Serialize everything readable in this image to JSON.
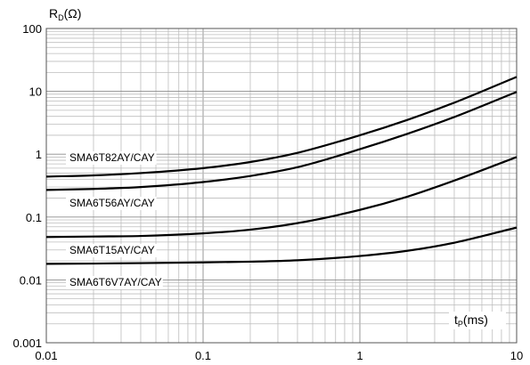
{
  "chart_data": {
    "type": "line",
    "xscale": "log",
    "yscale": "log",
    "xlim": [
      0.01,
      10
    ],
    "ylim": [
      0.001,
      100
    ],
    "grid": true,
    "ylabel": {
      "main": "R",
      "sub": "D",
      "unit": "(Ω)"
    },
    "xlabel": {
      "main": "t",
      "sub": "P",
      "unit": "(ms)"
    },
    "x_ticks": [
      "0.01",
      "0.1",
      "1",
      "10"
    ],
    "y_ticks": [
      "0.001",
      "0.01",
      "0.1",
      "1",
      "10",
      "100"
    ],
    "series": [
      {
        "name": "SMA6T82AY/CAY",
        "x": [
          0.01,
          0.02,
          0.04,
          0.1,
          0.2,
          0.4,
          1,
          2,
          4,
          10
        ],
        "y": [
          0.44,
          0.46,
          0.5,
          0.6,
          0.75,
          1.05,
          2.0,
          3.5,
          6.6,
          17
        ]
      },
      {
        "name": "SMA6T56AY/CAY",
        "x": [
          0.01,
          0.02,
          0.04,
          0.1,
          0.2,
          0.4,
          1,
          2,
          4,
          10
        ],
        "y": [
          0.27,
          0.28,
          0.3,
          0.36,
          0.45,
          0.62,
          1.2,
          2.1,
          3.9,
          9.8
        ]
      },
      {
        "name": "SMA6T15AY/CAY",
        "x": [
          0.01,
          0.02,
          0.04,
          0.1,
          0.2,
          0.4,
          1,
          2,
          4,
          10
        ],
        "y": [
          0.048,
          0.049,
          0.05,
          0.055,
          0.063,
          0.08,
          0.13,
          0.21,
          0.38,
          0.9
        ]
      },
      {
        "name": "SMA6T6V7AY/CAY",
        "x": [
          0.01,
          0.02,
          0.04,
          0.1,
          0.2,
          0.4,
          1,
          2,
          4,
          10
        ],
        "y": [
          0.018,
          0.0182,
          0.0185,
          0.019,
          0.0195,
          0.0205,
          0.024,
          0.029,
          0.039,
          0.068
        ]
      }
    ]
  }
}
